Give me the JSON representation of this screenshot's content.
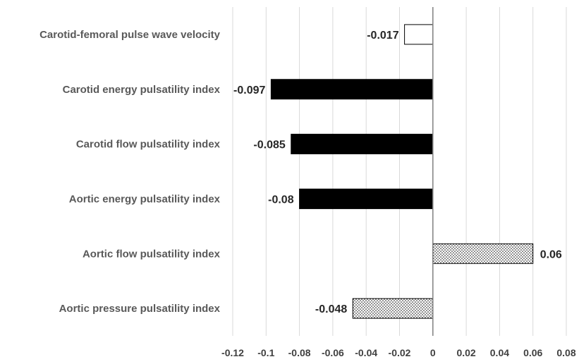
{
  "chart_data": {
    "type": "bar",
    "orientation": "horizontal",
    "categories": [
      "Carotid-femoral pulse wave velocity",
      "Carotid energy pulsatility index",
      "Carotid flow pulsatility index",
      "Aortic energy pulsatility index",
      "Aortic flow pulsatility index",
      "Aortic pressure pulsatility index"
    ],
    "values": [
      -0.017,
      -0.097,
      -0.085,
      -0.08,
      0.06,
      -0.048
    ],
    "value_labels": [
      "-0.017",
      "-0.097",
      "-0.085",
      "-0.08",
      "0.06",
      "-0.048"
    ],
    "bar_fills": [
      "white",
      "black",
      "black",
      "black",
      "dotted",
      "dotted"
    ],
    "title": "",
    "xlabel": "",
    "ylabel": "",
    "xlim": [
      -0.12,
      0.08
    ],
    "ticks": [
      -0.12,
      -0.1,
      -0.08,
      -0.06,
      -0.04,
      -0.02,
      0,
      0.02,
      0.04,
      0.06,
      0.08
    ],
    "tick_labels": [
      "-0.12",
      "-0.1",
      "-0.08",
      "-0.06",
      "-0.04",
      "-0.02",
      "0",
      "0.02",
      "0.04",
      "0.06",
      "0.08"
    ],
    "grid": "vertical",
    "legend": "none"
  }
}
